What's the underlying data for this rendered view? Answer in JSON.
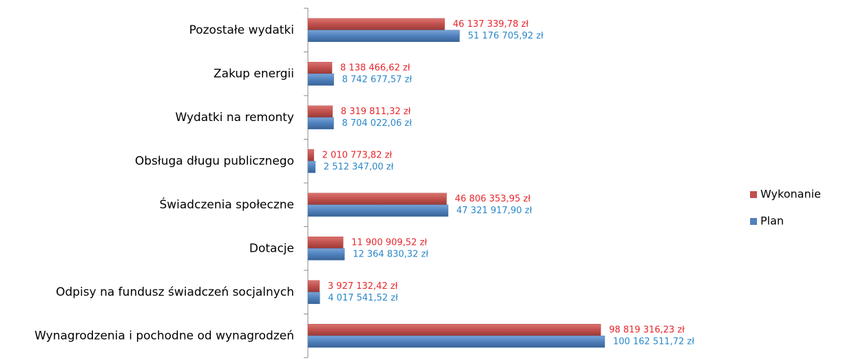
{
  "chart_data": {
    "type": "hbar",
    "categories": [
      "Pozostałe wydatki",
      "Zakup energii",
      "Wydatki na remonty",
      "Obsługa długu publicznego",
      "Świadczenia społeczne",
      "Dotacje",
      "Odpisy na fundusz świadczeń socjalnych",
      "Wynagrodzenia i pochodne od wynagrodzeń"
    ],
    "series": [
      {
        "name": "Wykonanie",
        "color": "#c0504d",
        "label_color": "#e8262b",
        "values": [
          46137339.78,
          8138466.62,
          8319811.32,
          2010773.82,
          46806353.95,
          11900909.52,
          3927132.42,
          98819316.23
        ],
        "value_labels": [
          "46 137 339,78 zł",
          "8 138 466,62 zł",
          "8 319 811,32 zł",
          "2 010 773,82 zł",
          "46 806 353,95 zł",
          "11 900 909,52 zł",
          "3 927 132,42 zł",
          "98 819 316,23 zł"
        ]
      },
      {
        "name": "Plan",
        "color": "#4f81bd",
        "label_color": "#2a87c8",
        "values": [
          51176705.92,
          8742677.57,
          8704022.06,
          2512347.0,
          47321917.9,
          12364830.32,
          4017541.52,
          100162511.72
        ],
        "value_labels": [
          "51 176 705,92 zł",
          "8 742 677,57 zł",
          "8 704 022,06 zł",
          "2 512 347,00 zł",
          "47 321 917,90 zł",
          "12 364 830,32 zł",
          "4 017 541,52 zł",
          "100 162 511,72 zł"
        ]
      }
    ],
    "legend": "right"
  }
}
